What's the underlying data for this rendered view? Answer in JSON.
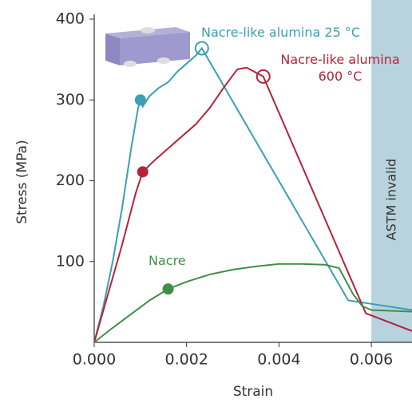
{
  "chart_data": {
    "type": "line",
    "xlabel": "Strain",
    "ylabel": "Stress (MPa)",
    "xlim": [
      0,
      0.00688
    ],
    "ylim": [
      0,
      400
    ],
    "xticks": [
      {
        "value": 0,
        "label": "0.000"
      },
      {
        "value": 0.002,
        "label": "0.002"
      },
      {
        "value": 0.004,
        "label": "0.004"
      },
      {
        "value": 0.006,
        "label": "0.006"
      }
    ],
    "yticks": [
      100,
      200,
      300,
      400
    ],
    "invalid_region": {
      "from": 0.006,
      "label": "ASTM invalid",
      "color": "#b9d3de"
    },
    "series": [
      {
        "name": "Nacre-like alumina 25 °C",
        "color": "#3a9fb7",
        "x": [
          0,
          0.0002,
          0.0004,
          0.0006,
          0.0008,
          0.00095,
          0.001,
          0.00105,
          0.0012,
          0.0014,
          0.0016,
          0.0018,
          0.002,
          0.0022,
          0.00233,
          0.0055,
          0.00688
        ],
        "values": [
          0,
          45,
          100,
          165,
          240,
          290,
          300,
          292,
          305,
          315,
          322,
          335,
          345,
          355,
          364,
          52,
          40
        ],
        "filled_point": [
          0.001,
          300
        ],
        "open_point": [
          0.00233,
          364
        ]
      },
      {
        "name": "Nacre-like alumina 600 °C",
        "color": "#b3243b",
        "x": [
          0,
          0.0003,
          0.0006,
          0.0009,
          0.00105,
          0.0013,
          0.0016,
          0.0019,
          0.0022,
          0.0025,
          0.0028,
          0.0031,
          0.0033,
          0.00366,
          0.00588,
          0.00688
        ],
        "values": [
          0,
          60,
          120,
          185,
          211,
          225,
          240,
          255,
          270,
          290,
          315,
          338,
          340,
          329,
          36,
          14
        ],
        "filled_point": [
          0.00105,
          211
        ],
        "open_point": [
          0.00366,
          329
        ]
      },
      {
        "name": "Nacre",
        "color": "#3f8f47",
        "x": [
          0,
          0.0004,
          0.0008,
          0.0012,
          0.0016,
          0.002,
          0.0025,
          0.003,
          0.0035,
          0.004,
          0.0045,
          0.005,
          0.0053,
          0.0056,
          0.0058,
          0.006,
          0.00688
        ],
        "values": [
          0,
          18,
          35,
          52,
          66,
          75,
          84,
          90,
          94,
          97,
          97,
          96,
          92,
          60,
          45,
          40,
          38
        ],
        "filled_point": [
          0.0016,
          66
        ]
      }
    ]
  }
}
